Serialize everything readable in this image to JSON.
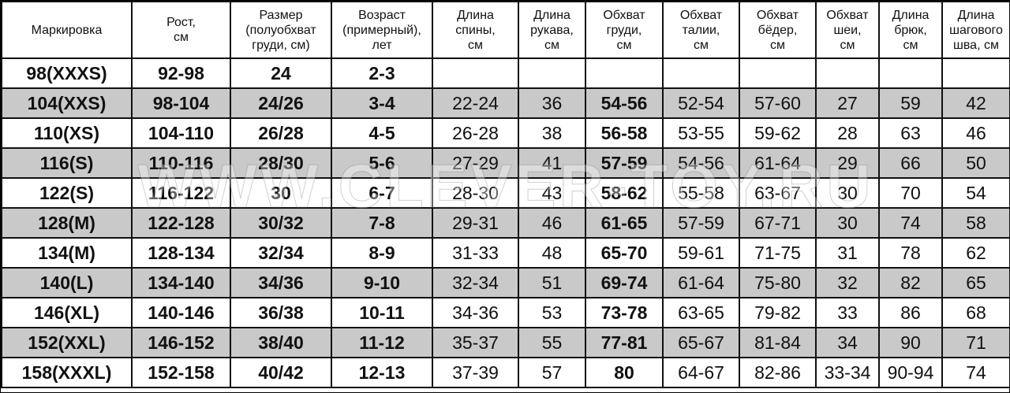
{
  "headers": [
    "Маркировка",
    "Рост,\nсм",
    "Размер\n(полуобхват\nгруди, см)",
    "Возраст\n(примерный),\nлет",
    "Длина\nспины,\nсм",
    "Длина\nрукава,\nсм",
    "Обхват\nгруди,\nсм",
    "Обхват\nталии,\nсм",
    "Обхват\nбёдер,\nсм",
    "Обхват\nшеи,\nсм",
    "Длина\nбрюк,\nсм",
    "Длина\nшагового\nшва, см"
  ],
  "rows": [
    [
      "98(XXXS)",
      "92-98",
      "24",
      "2-3",
      "",
      "",
      "",
      "",
      "",
      "",
      "",
      ""
    ],
    [
      "104(XXS)",
      "98-104",
      "24/26",
      "3-4",
      "22-24",
      "36",
      "54-56",
      "52-54",
      "57-60",
      "27",
      "59",
      "42"
    ],
    [
      "110(XS)",
      "104-110",
      "26/28",
      "4-5",
      "26-28",
      "38",
      "56-58",
      "53-55",
      "59-62",
      "28",
      "63",
      "46"
    ],
    [
      "116(S)",
      "110-116",
      "28/30",
      "5-6",
      "27-29",
      "41",
      "57-59",
      "54-56",
      "61-64",
      "29",
      "66",
      "50"
    ],
    [
      "122(S)",
      "116-122",
      "30",
      "6-7",
      "28-30",
      "43",
      "58-62",
      "55-58",
      "63-67",
      "30",
      "70",
      "54"
    ],
    [
      "128(M)",
      "122-128",
      "30/32",
      "7-8",
      "29-31",
      "46",
      "61-65",
      "57-59",
      "67-71",
      "30",
      "74",
      "58"
    ],
    [
      "134(M)",
      "128-134",
      "32/34",
      "8-9",
      "31-33",
      "48",
      "65-70",
      "59-61",
      "71-75",
      "31",
      "78",
      "62"
    ],
    [
      "140(L)",
      "134-140",
      "34/36",
      "9-10",
      "32-34",
      "51",
      "69-74",
      "61-64",
      "75-80",
      "32",
      "82",
      "65"
    ],
    [
      "146(XL)",
      "140-146",
      "36/38",
      "10-11",
      "34-36",
      "53",
      "73-78",
      "63-65",
      "79-82",
      "33",
      "86",
      "68"
    ],
    [
      "152(XXL)",
      "146-152",
      "38/40",
      "11-12",
      "35-37",
      "55",
      "77-81",
      "65-67",
      "81-84",
      "34",
      "90",
      "71"
    ],
    [
      "158(XXXL)",
      "152-158",
      "40/42",
      "12-13",
      "37-39",
      "57",
      "80",
      "64-67",
      "82-86",
      "33-34",
      "90-94",
      "74"
    ]
  ],
  "watermark": "WWW.CLEVER-TOY.RU",
  "colors": {
    "shaded_row": "#c9c9c9",
    "border": "#111111"
  }
}
